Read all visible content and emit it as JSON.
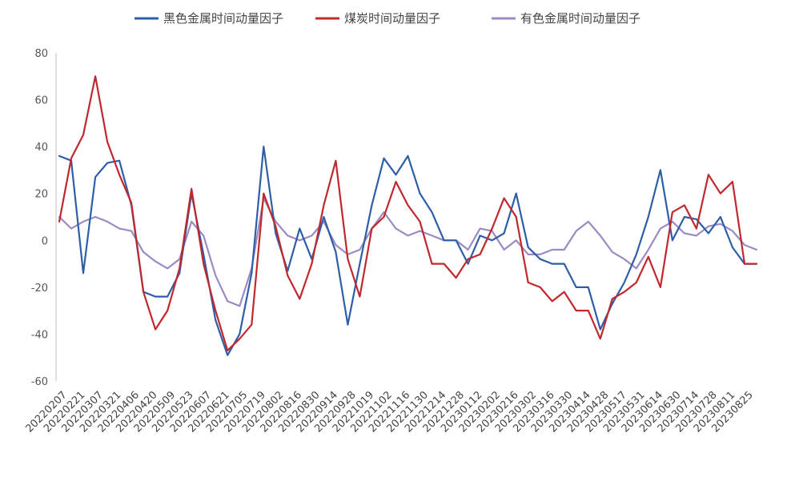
{
  "chart_data": {
    "type": "line",
    "title": "",
    "xlabel": "",
    "ylabel": "",
    "ylim": [
      -60,
      80
    ],
    "yticks": [
      80,
      60,
      40,
      20,
      0,
      -20,
      -40,
      -60
    ],
    "grid": false,
    "legend_position": "top",
    "x_tick_labels": [
      "20220207",
      "20220221",
      "20220307",
      "20220321",
      "20220406",
      "20220420",
      "20220509",
      "20220523",
      "20220607",
      "20220621",
      "20220705",
      "20220719",
      "20220802",
      "20220816",
      "20220830",
      "20220914",
      "20220928",
      "20221019",
      "20221102",
      "20221116",
      "20221130",
      "20221214",
      "20221228",
      "20230112",
      "20230202",
      "20230216",
      "20230302",
      "20230316",
      "20230330",
      "20230414",
      "20230428",
      "20230517",
      "20230531",
      "20230614",
      "20230630",
      "20230714",
      "20230728",
      "20230811",
      "20230825"
    ],
    "series": [
      {
        "name": "黑色金属时间动量因子",
        "color": "#2E5EA8",
        "values": [
          36,
          34,
          -14,
          27,
          33,
          34,
          15,
          -22,
          -24,
          -24,
          -14,
          20,
          -6,
          -34,
          -49,
          -40,
          -14,
          40,
          3,
          -13,
          5,
          -8,
          10,
          -5,
          -36,
          -10,
          15,
          35,
          28,
          36,
          20,
          12,
          0,
          0,
          -10,
          2,
          0,
          3,
          20,
          -3,
          -8,
          -10,
          -10,
          -20,
          -20,
          -38,
          -27,
          -18,
          -6,
          10,
          30,
          0,
          10,
          9,
          3,
          10,
          -3,
          -10,
          -10
        ]
      },
      {
        "name": "煤炭时间动量因子",
        "color": "#C0282D",
        "values": [
          8,
          35,
          45,
          70,
          42,
          28,
          16,
          -22,
          -38,
          -30,
          -12,
          22,
          -10,
          -30,
          -47,
          -42,
          -36,
          20,
          6,
          -15,
          -25,
          -10,
          15,
          34,
          -8,
          -24,
          5,
          10,
          25,
          15,
          8,
          -10,
          -10,
          -16,
          -8,
          -6,
          5,
          18,
          10,
          -18,
          -20,
          -26,
          -22,
          -30,
          -30,
          -42,
          -25,
          -22,
          -18,
          -7,
          -20,
          12,
          15,
          5,
          28,
          20,
          25,
          -10,
          -10
        ]
      },
      {
        "name": "有色金属时间动量因子",
        "color": "#9C8AC2",
        "values": [
          10,
          5,
          8,
          10,
          8,
          5,
          4,
          -5,
          -9,
          -12,
          -8,
          8,
          2,
          -15,
          -26,
          -28,
          -12,
          18,
          8,
          2,
          0,
          2,
          8,
          -2,
          -6,
          -4,
          5,
          12,
          5,
          2,
          4,
          2,
          0,
          0,
          -4,
          5,
          4,
          -4,
          0,
          -6,
          -6,
          -4,
          -4,
          4,
          8,
          2,
          -5,
          -8,
          -12,
          -4,
          5,
          8,
          3,
          2,
          6,
          7,
          4,
          -2,
          -4
        ]
      }
    ]
  }
}
